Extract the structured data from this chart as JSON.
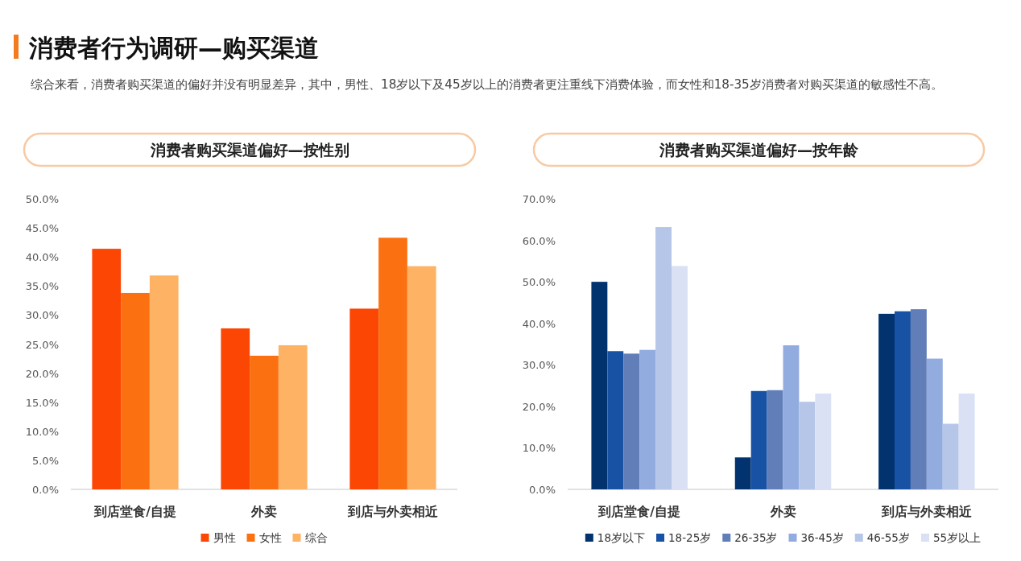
{
  "chart_data": [
    {
      "type": "bar",
      "title": "消费者购买渠道偏好—按性别",
      "annotations": [
        "消费者行为调研—购买渠道",
        "综合来看，消费者购买渠道的偏好并没有明显差异，其中，男性、18岁以下及45岁以上的消费者更注重线下消费体验，而女性和18-35岁消费者对购买渠道的敏感性不高。"
      ],
      "categories": [
        "到店堂食/自提",
        "外卖",
        "到店与外卖相近"
      ],
      "series": [
        {
          "name": "男性",
          "color": "#fc4604",
          "values": [
            41.4,
            27.7,
            31.1
          ]
        },
        {
          "name": "女性",
          "color": "#fb7112",
          "values": [
            33.8,
            23.0,
            43.3
          ]
        },
        {
          "name": "综合",
          "color": "#fdb264",
          "values": [
            36.8,
            24.8,
            38.4
          ]
        }
      ],
      "ylim": [
        0,
        50
      ],
      "yticks": [
        {
          "value": 0,
          "label": "0.0%"
        },
        {
          "value": 5,
          "label": "5.0%"
        },
        {
          "value": 10,
          "label": "10.0%"
        },
        {
          "value": 15,
          "label": "15.0%"
        },
        {
          "value": 20,
          "label": "20.0%"
        },
        {
          "value": 25,
          "label": "25.0%"
        },
        {
          "value": 30,
          "label": "30.0%"
        },
        {
          "value": 35,
          "label": "35.0%"
        },
        {
          "value": 40,
          "label": "40.0%"
        },
        {
          "value": 45,
          "label": "45.0%"
        },
        {
          "value": 50,
          "label": "50.0%"
        }
      ],
      "legend": "bottom"
    },
    {
      "type": "bar",
      "title": "消费者购买渠道偏好—按年龄",
      "categories": [
        "到店堂食/自提",
        "外卖",
        "到店与外卖相近"
      ],
      "series": [
        {
          "name": "18岁以下",
          "color": "#03336f",
          "values": [
            50.0,
            7.7,
            42.3
          ]
        },
        {
          "name": "18-25岁",
          "color": "#1852a4",
          "values": [
            33.3,
            23.7,
            42.9
          ]
        },
        {
          "name": "26-35岁",
          "color": "#617eb8",
          "values": [
            32.7,
            23.9,
            43.4
          ]
        },
        {
          "name": "36-45岁",
          "color": "#92ace0",
          "values": [
            33.6,
            34.7,
            31.5
          ]
        },
        {
          "name": "46-55岁",
          "color": "#b6c6e8",
          "values": [
            63.2,
            21.1,
            15.8
          ]
        },
        {
          "name": "55岁以上",
          "color": "#dae1f4",
          "values": [
            53.8,
            23.1,
            23.1
          ]
        }
      ],
      "ylim": [
        0,
        70
      ],
      "yticks": [
        {
          "value": 0,
          "label": "0.0%"
        },
        {
          "value": 10,
          "label": "10.0%"
        },
        {
          "value": 20,
          "label": "20.0%"
        },
        {
          "value": 30,
          "label": "30.0%"
        },
        {
          "value": 40,
          "label": "40.0%"
        },
        {
          "value": 50,
          "label": "50.0%"
        },
        {
          "value": 60,
          "label": "60.0%"
        },
        {
          "value": 70,
          "label": "70.0%"
        }
      ],
      "legend": "bottom"
    }
  ]
}
